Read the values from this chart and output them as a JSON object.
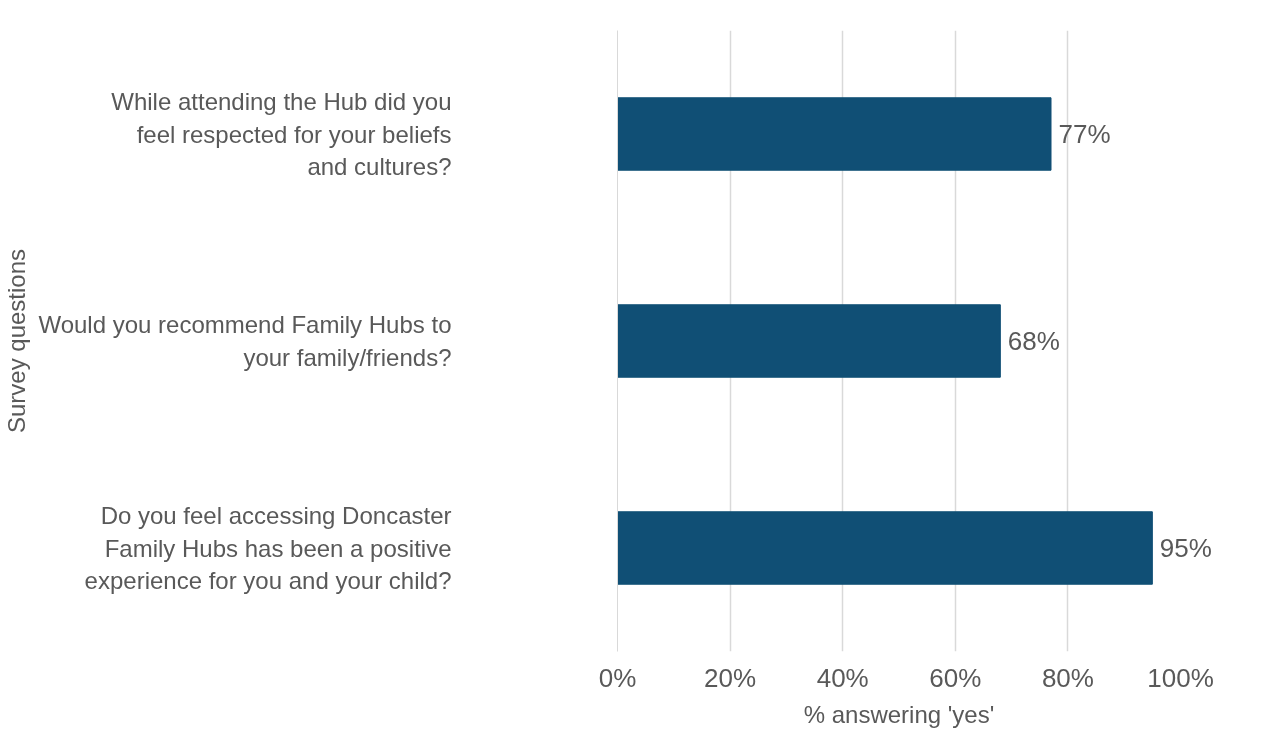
{
  "chart_data": {
    "type": "bar",
    "orientation": "horizontal",
    "xlabel": "% answering 'yes'",
    "ylabel": "Survey questions",
    "categories": [
      "While attending the Hub did you feel respected for your beliefs and cultures?",
      "Would you recommend Family Hubs to your family/friends?",
      "Do you feel accessing Doncaster Family Hubs has been a positive experience for you and your child?"
    ],
    "values": [
      77,
      68,
      95
    ],
    "value_labels": [
      "77%",
      "68%",
      "95%"
    ],
    "color": "#104f75",
    "xlim": [
      0,
      100
    ],
    "xticks": [
      {
        "value": 0,
        "label": "0%"
      },
      {
        "value": 20,
        "label": "20%"
      },
      {
        "value": 40,
        "label": "40%"
      },
      {
        "value": 60,
        "label": "60%"
      },
      {
        "value": 80,
        "label": "80%"
      },
      {
        "value": 100,
        "label": "100%"
      }
    ],
    "grid": "x"
  }
}
